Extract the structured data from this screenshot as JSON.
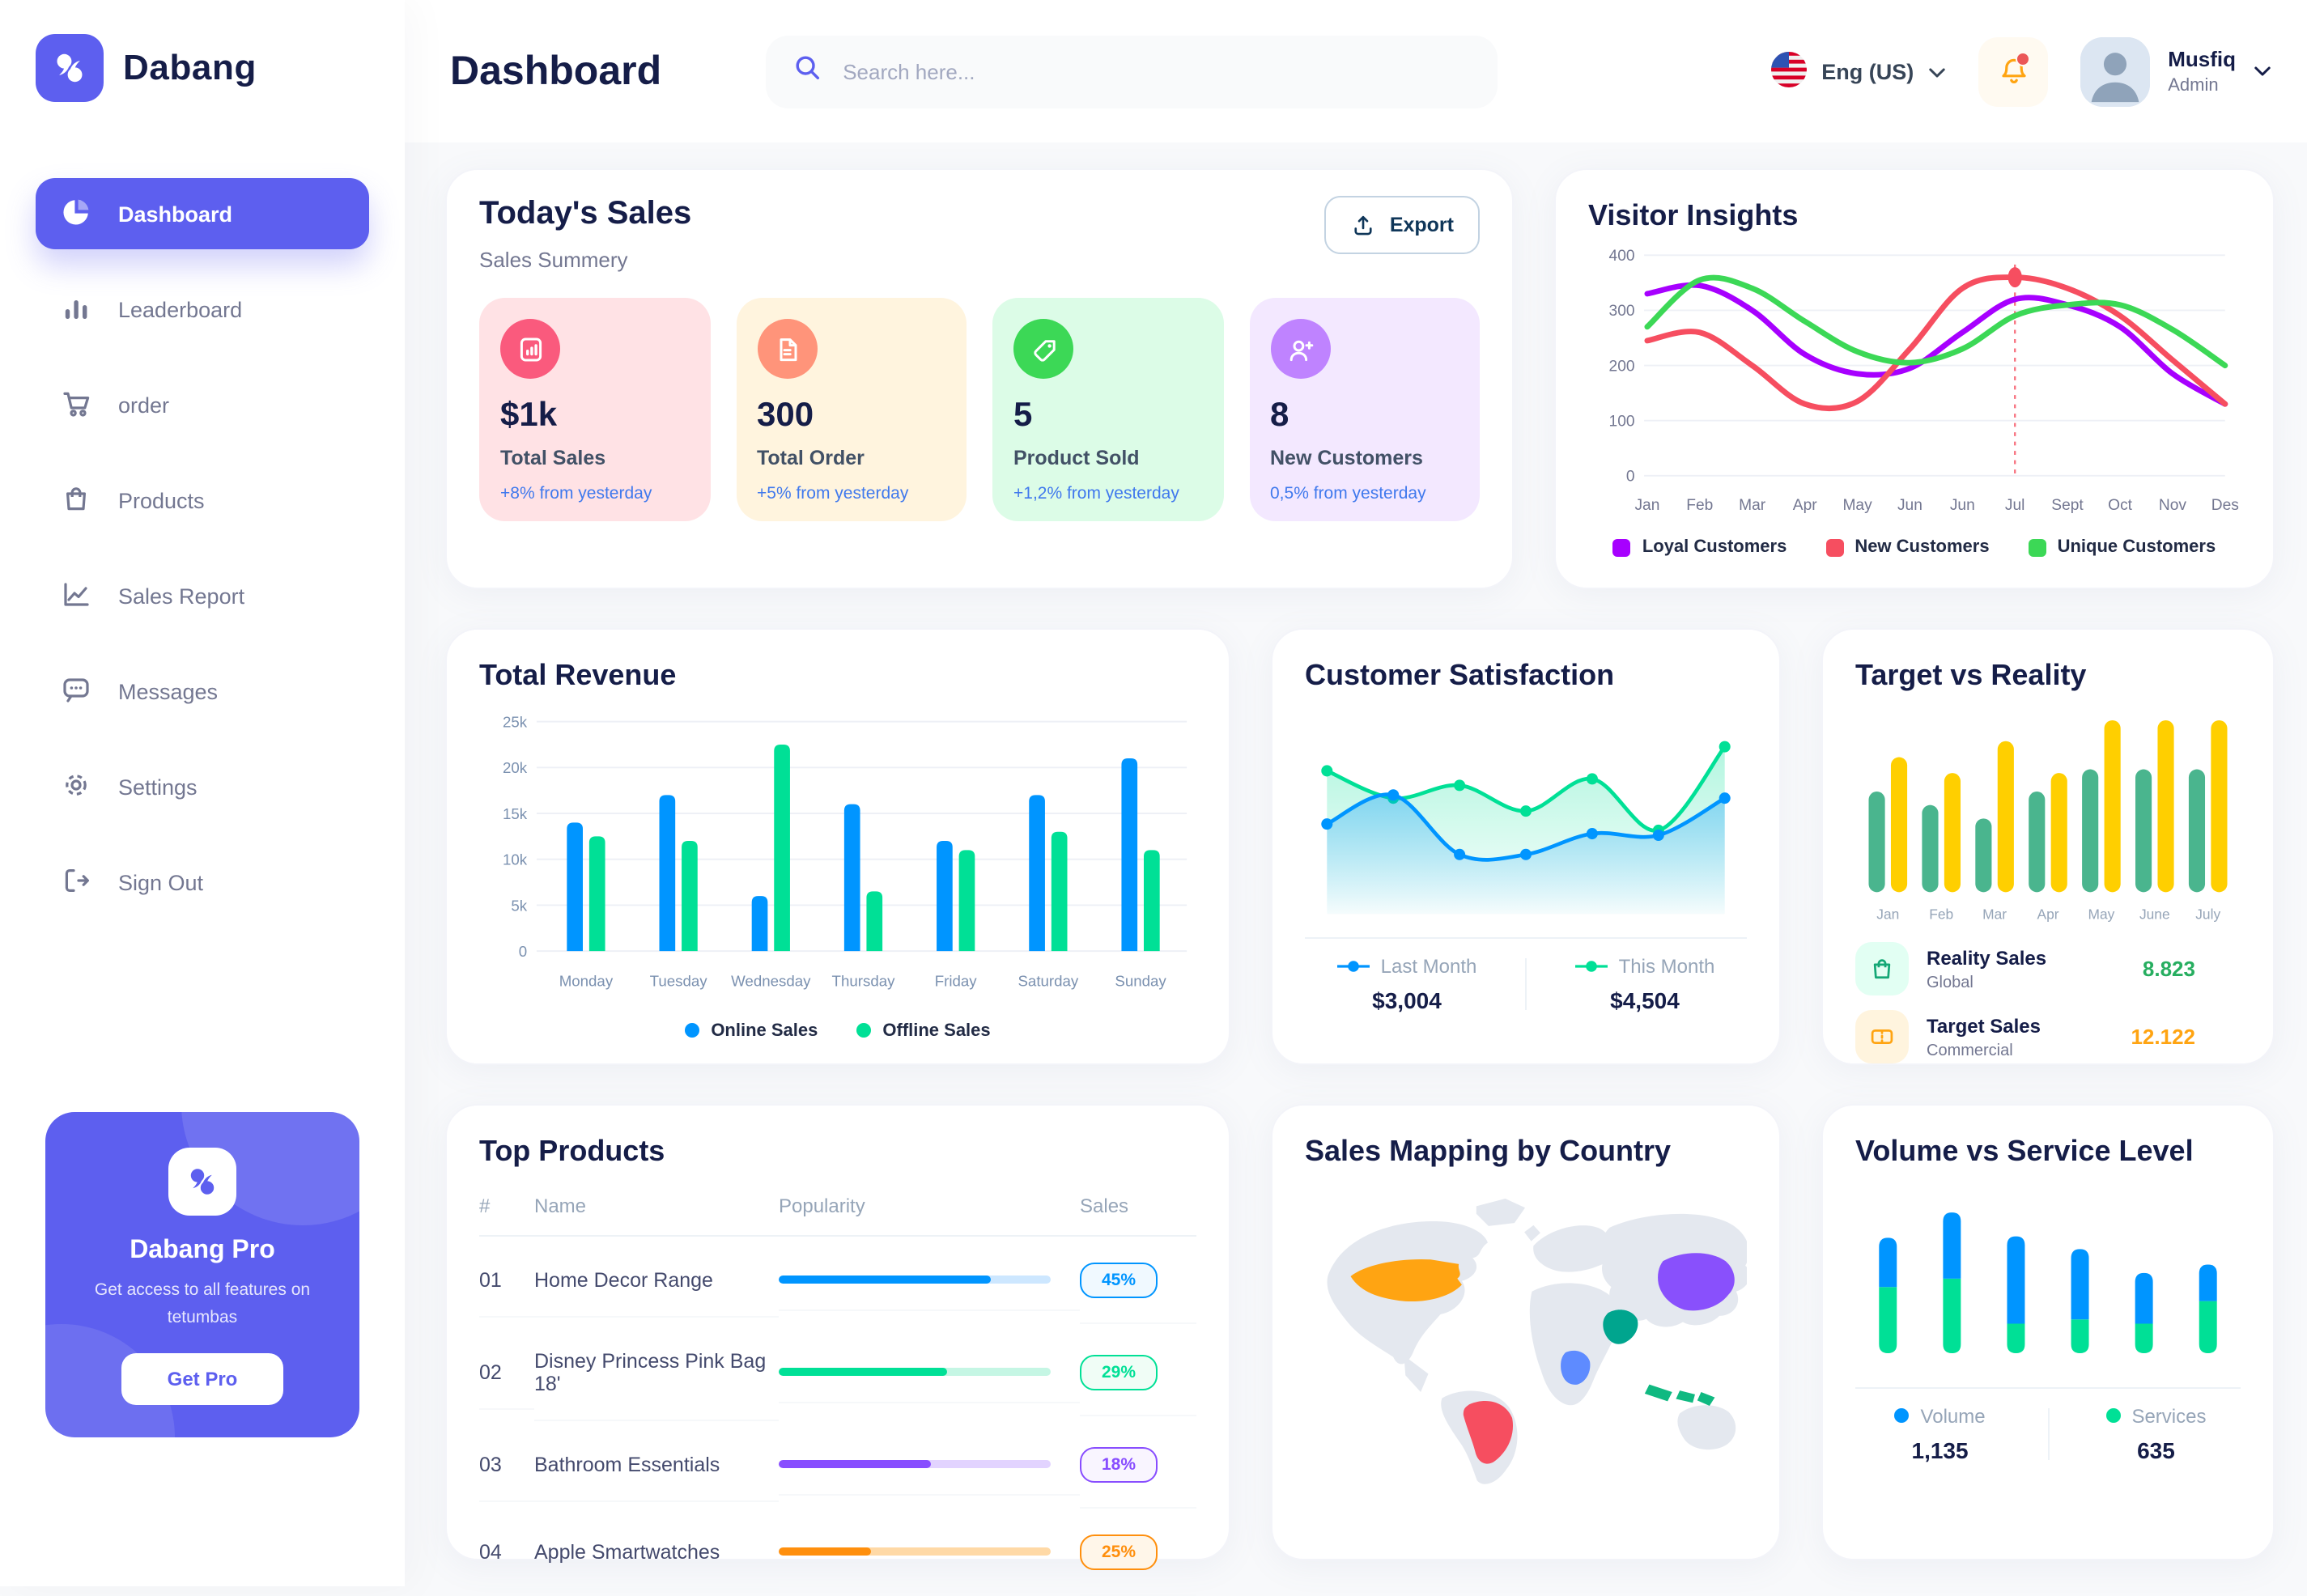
{
  "app": {
    "brand": "Dabang"
  },
  "sidebar": {
    "items": [
      {
        "label": "Dashboard",
        "active": true
      },
      {
        "label": "Leaderboard"
      },
      {
        "label": "order"
      },
      {
        "label": "Products"
      },
      {
        "label": "Sales Report"
      },
      {
        "label": "Messages"
      },
      {
        "label": "Settings"
      },
      {
        "label": "Sign Out"
      }
    ],
    "pro": {
      "title": "Dabang Pro",
      "desc": "Get access to all features on tetumbas",
      "cta": "Get Pro"
    }
  },
  "header": {
    "title": "Dashboard",
    "search_placeholder": "Search here...",
    "language": "Eng (US)",
    "user": {
      "name": "Musfiq",
      "role": "Admin"
    }
  },
  "todays_sales": {
    "title": "Today's Sales",
    "subtitle": "Sales Summery",
    "export_label": "Export",
    "cards": [
      {
        "value": "$1k",
        "label": "Total Sales",
        "trend": "+8% from yesterday",
        "bg": "#FFE2E5",
        "icon_bg": "#FA5A7D",
        "icon": "bar-chart"
      },
      {
        "value": "300",
        "label": "Total Order",
        "trend": "+5% from yesterday",
        "bg": "#FFF4DE",
        "icon_bg": "#FF947A",
        "icon": "file"
      },
      {
        "value": "5",
        "label": "Product Sold",
        "trend": "+1,2% from yesterday",
        "bg": "#DCFCE7",
        "icon_bg": "#3CD856",
        "icon": "tag"
      },
      {
        "value": "8",
        "label": "New Customers",
        "trend": "0,5% from yesterday",
        "bg": "#F3E8FF",
        "icon_bg": "#BF83FF",
        "icon": "user-plus"
      }
    ]
  },
  "chart_data": {
    "visitor_insights": {
      "type": "line",
      "title": "Visitor Insights",
      "x": [
        "Jan",
        "Feb",
        "Mar",
        "Apr",
        "May",
        "Jun",
        "Jun",
        "Jul",
        "Sept",
        "Oct",
        "Nov",
        "Des"
      ],
      "ylim": [
        0,
        400
      ],
      "yticks": [
        0,
        100,
        200,
        300,
        400
      ],
      "grid": true,
      "legend_position": "bottom",
      "series": [
        {
          "name": "Loyal Customers",
          "color": "#A700FF",
          "values": [
            330,
            345,
            300,
            220,
            185,
            195,
            260,
            320,
            310,
            270,
            185,
            130
          ]
        },
        {
          "name": "New Customers",
          "color": "#F64E60",
          "values": [
            245,
            260,
            200,
            130,
            135,
            230,
            340,
            360,
            340,
            290,
            210,
            130
          ]
        },
        {
          "name": "Unique Customers",
          "color": "#3CD856",
          "values": [
            270,
            355,
            340,
            280,
            225,
            205,
            230,
            290,
            310,
            310,
            265,
            200
          ]
        }
      ],
      "marker": {
        "series": "New Customers",
        "x_index": 7,
        "value": 360,
        "color": "#F64E60"
      }
    },
    "total_revenue": {
      "type": "bar",
      "title": "Total Revenue",
      "categories": [
        "Monday",
        "Tuesday",
        "Wednesday",
        "Thursday",
        "Friday",
        "Saturday",
        "Sunday"
      ],
      "ylim": [
        0,
        25
      ],
      "ytick_labels": [
        "0",
        "5k",
        "10k",
        "15k",
        "20k",
        "25k"
      ],
      "grid": true,
      "legend_position": "bottom",
      "series": [
        {
          "name": "Online Sales",
          "color": "#0095FF",
          "values": [
            14,
            17,
            6,
            16,
            12,
            17,
            21
          ]
        },
        {
          "name": "Offline Sales",
          "color": "#00E096",
          "values": [
            12.5,
            12,
            22.5,
            6.5,
            11,
            13,
            11
          ]
        }
      ]
    },
    "customer_satisfaction": {
      "type": "area",
      "title": "Customer Satisfaction",
      "series": [
        {
          "name": "Last Month",
          "color": "#0095FF",
          "total": "$3,004",
          "values": [
            52,
            70,
            33,
            33,
            46,
            45,
            68
          ]
        },
        {
          "name": "This Month",
          "color": "#00E096",
          "total": "$4,504",
          "values": [
            85,
            68,
            76,
            60,
            80,
            48,
            100
          ]
        }
      ]
    },
    "target_vs_reality": {
      "type": "bar",
      "title": "Target vs Reality",
      "categories": [
        "Jan",
        "Feb",
        "Mar",
        "Apr",
        "May",
        "June",
        "July"
      ],
      "ylim": [
        0,
        14
      ],
      "series": [
        {
          "name": "Reality Sales",
          "scope": "Global",
          "color": "#4AB58E",
          "value_label": "8.823",
          "value_color": "#27AE60",
          "values": [
            8.2,
            7.1,
            6.0,
            8.2,
            10,
            10,
            10
          ]
        },
        {
          "name": "Target Sales",
          "scope": "Commercial",
          "color": "#FFCF00",
          "value_label": "12.122",
          "value_color": "#FFA412",
          "values": [
            11,
            9.7,
            12.3,
            9.7,
            14,
            14,
            14
          ]
        }
      ]
    },
    "sales_mapping": {
      "type": "map",
      "title": "Sales Mapping by Country",
      "countries": [
        {
          "name": "United States",
          "color": "#FFA412"
        },
        {
          "name": "Brazil",
          "color": "#F64E60"
        },
        {
          "name": "China",
          "color": "#8950FC"
        },
        {
          "name": "Saudi Arabia",
          "color": "#00A58E"
        },
        {
          "name": "DR Congo",
          "color": "#5E8BFF"
        },
        {
          "name": "Indonesia",
          "color": "#10B981"
        }
      ]
    },
    "volume_vs_service": {
      "type": "stacked-bar",
      "title": "Volume vs Service Level",
      "series": [
        {
          "name": "Volume",
          "color": "#0095FF",
          "total": "1,135",
          "values": [
            35,
            47,
            62,
            50,
            36,
            26
          ]
        },
        {
          "name": "Services",
          "color": "#00E096",
          "total": "635",
          "values": [
            47,
            53,
            21,
            24,
            21,
            37
          ]
        }
      ]
    }
  },
  "top_products": {
    "title": "Top Products",
    "columns": {
      "rank": "#",
      "name": "Name",
      "popularity": "Popularity",
      "sales": "Sales"
    },
    "rows": [
      {
        "rank": "01",
        "name": "Home Decor Range",
        "popularity": 78,
        "sales": "45%",
        "color": "#0095FF",
        "track": "#CDE7FF",
        "badge_bg": "#F0F9FF"
      },
      {
        "rank": "02",
        "name": "Disney Princess Pink Bag 18'",
        "popularity": 62,
        "sales": "29%",
        "color": "#00E096",
        "track": "#C5F6E4",
        "badge_bg": "#F0FDF6"
      },
      {
        "rank": "03",
        "name": "Bathroom Essentials",
        "popularity": 56,
        "sales": "18%",
        "color": "#884DFF",
        "track": "#E2D3FF",
        "badge_bg": "#F9F5FF"
      },
      {
        "rank": "04",
        "name": "Apple Smartwatches",
        "popularity": 34,
        "sales": "25%",
        "color": "#FF8F0D",
        "track": "#FFD9A6",
        "badge_bg": "#FFF6E9"
      }
    ]
  }
}
